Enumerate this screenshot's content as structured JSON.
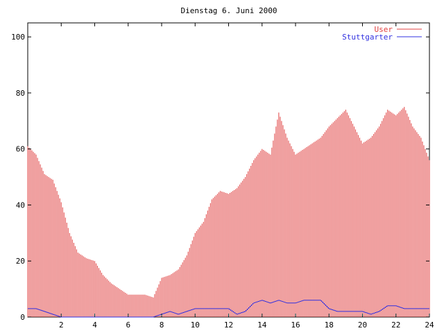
{
  "chart_data": {
    "type": "bar",
    "title": "Dienstag 6. Juni 2000",
    "xlabel": "",
    "ylabel": "",
    "xlim": [
      0,
      24
    ],
    "ylim": [
      0,
      105
    ],
    "x_ticks": [
      2,
      4,
      6,
      8,
      10,
      12,
      14,
      16,
      18,
      20,
      22,
      24
    ],
    "y_ticks": [
      0,
      20,
      40,
      60,
      80,
      100
    ],
    "legend_position": "top-right",
    "colors": {
      "User": "#e04040",
      "Stuttgarter": "#3030e0"
    },
    "series": [
      {
        "name": "User",
        "type": "bar",
        "x": [
          0,
          0.5,
          1,
          1.5,
          2,
          2.5,
          3,
          3.5,
          4,
          4.5,
          5,
          5.5,
          6,
          6.5,
          7,
          7.5,
          8,
          8.5,
          9,
          9.5,
          10,
          10.5,
          11,
          11.5,
          12,
          12.5,
          13,
          13.5,
          14,
          14.5,
          15,
          15.5,
          16,
          16.5,
          17,
          17.5,
          18,
          18.5,
          19,
          19.5,
          20,
          20.5,
          21,
          21.5,
          22,
          22.5,
          23,
          23.5,
          24
        ],
        "values": [
          61,
          58,
          51,
          49,
          41,
          30,
          23,
          21,
          20,
          15,
          12,
          10,
          8,
          8,
          8,
          7,
          14,
          15,
          17,
          22,
          30,
          34,
          42,
          45,
          44,
          46,
          50,
          56,
          60,
          58,
          73,
          64,
          58,
          60,
          62,
          64,
          68,
          71,
          74,
          68,
          62,
          64,
          68,
          74,
          72,
          75,
          68,
          64,
          56
        ]
      },
      {
        "name": "Stuttgarter",
        "type": "line",
        "x": [
          0,
          0.5,
          1,
          1.5,
          2,
          2.5,
          3,
          3.5,
          4,
          4.5,
          5,
          5.5,
          6,
          6.5,
          7,
          7.5,
          8,
          8.5,
          9,
          9.5,
          10,
          10.5,
          11,
          11.5,
          12,
          12.5,
          13,
          13.5,
          14,
          14.5,
          15,
          15.5,
          16,
          16.5,
          17,
          17.5,
          18,
          18.5,
          19,
          19.5,
          20,
          20.5,
          21,
          21.5,
          22,
          22.5,
          23,
          23.5,
          24
        ],
        "values": [
          3,
          3,
          2,
          1,
          0,
          0,
          0,
          0,
          0,
          0,
          0,
          0,
          0,
          0,
          0,
          0,
          1,
          2,
          1,
          2,
          3,
          3,
          3,
          3,
          3,
          1,
          2,
          5,
          6,
          5,
          6,
          5,
          5,
          6,
          6,
          6,
          3,
          2,
          2,
          2,
          2,
          1,
          2,
          4,
          4,
          3,
          3,
          3,
          3
        ]
      }
    ]
  }
}
